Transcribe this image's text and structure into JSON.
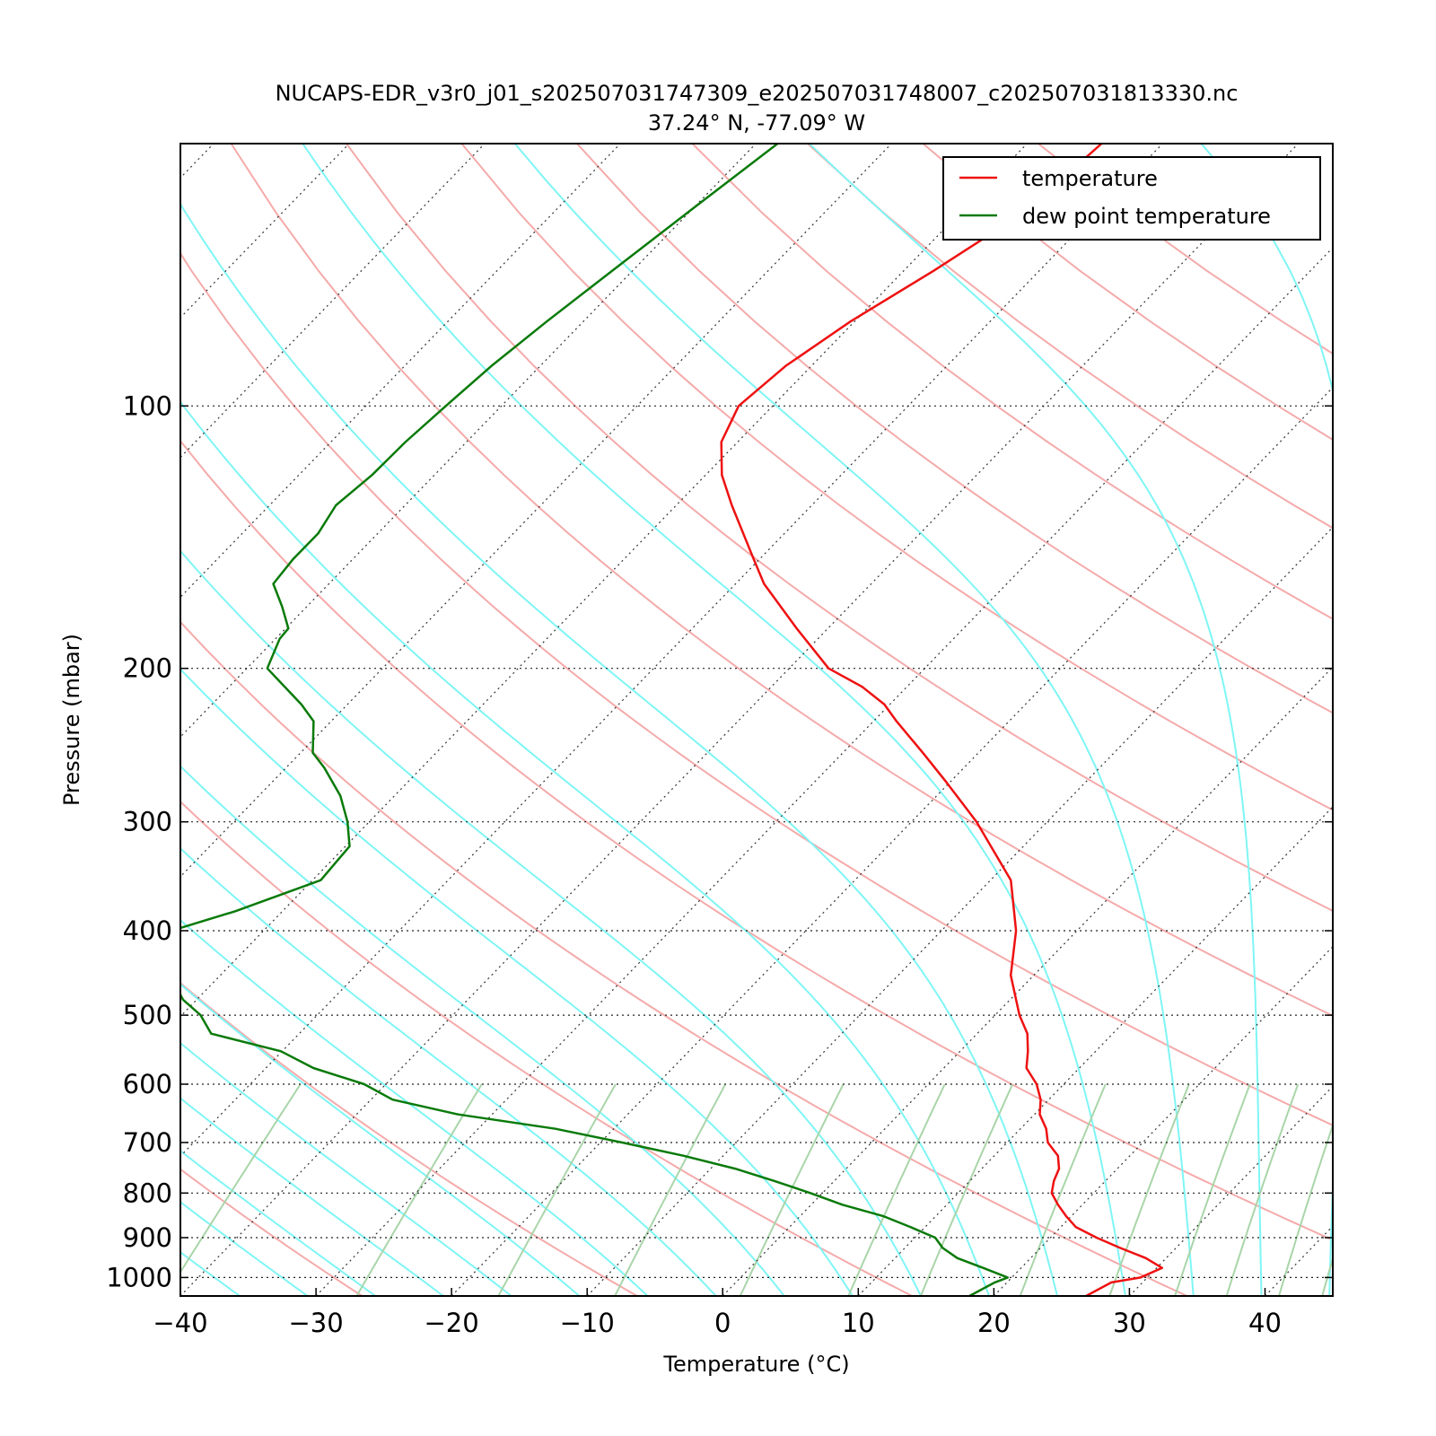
{
  "chart_data": {
    "type": "line",
    "subtype": "skew-t log-p diagram",
    "title": "NUCAPS-EDR_v3r0_j01_s202507031747309_e202507031748007_c202507031813330.nc",
    "subtitle": "37.24° N, -77.09° W",
    "xlabel": "Temperature (°C)",
    "ylabel": "Pressure (mbar)",
    "xlim": [
      -40,
      45
    ],
    "ylim": [
      1050,
      50
    ],
    "yscale": "log",
    "x_ticks": [
      "−40",
      "−30",
      "−20",
      "−10",
      "0",
      "10",
      "20",
      "30",
      "40"
    ],
    "x_tick_values": [
      -40,
      -30,
      -20,
      -10,
      0,
      10,
      20,
      30,
      40
    ],
    "y_ticks": [
      "100",
      "200",
      "300",
      "400",
      "500",
      "600",
      "700",
      "800",
      "900",
      "1000"
    ],
    "y_tick_values": [
      100,
      200,
      300,
      400,
      500,
      600,
      700,
      800,
      900,
      1000
    ],
    "grid": true,
    "legend": "top-right",
    "background_lines": [
      "dry adiabats",
      "moist adiabats",
      "mixing ratio lines",
      "isotherms"
    ],
    "colors": {
      "temperature": "#ee1111",
      "dewpoint": "#0a7a0a",
      "dry_adiabat": "#f5aaaa",
      "moist_adiabat": "#7ff5f5",
      "mixing_ratio": "#a9d5a9",
      "isotherm": "#333333"
    },
    "series": [
      {
        "name": "temperature",
        "pressure": [
          1050,
          1013,
          1000,
          975,
          950,
          925,
          900,
          875,
          850,
          825,
          800,
          775,
          750,
          725,
          700,
          675,
          650,
          625,
          600,
          575,
          550,
          525,
          500,
          450,
          400,
          350,
          300,
          270,
          250,
          230,
          220,
          210,
          200,
          180,
          160,
          150,
          130,
          120,
          110,
          100,
          90,
          80,
          70,
          60,
          50
        ],
        "values": [
          26.8,
          27.7,
          29.5,
          30.4,
          28.5,
          25.9,
          23.4,
          21.1,
          19.6,
          18.2,
          16.9,
          16.2,
          15.7,
          14.7,
          13.0,
          11.9,
          10.4,
          9.4,
          8.0,
          6.1,
          5.0,
          3.7,
          1.8,
          -1.7,
          -4.5,
          -8.5,
          -15.2,
          -20.3,
          -24.1,
          -28.3,
          -30.4,
          -33.3,
          -37.1,
          -42.3,
          -47.9,
          -50.4,
          -55.9,
          -58.8,
          -61.2,
          -62.5,
          -61.9,
          -60.3,
          -57.8,
          -55.3,
          -54.5
        ]
      },
      {
        "name": "dew point temperature",
        "pressure": [
          1050,
          1013,
          1000,
          975,
          950,
          925,
          900,
          875,
          850,
          825,
          800,
          775,
          750,
          725,
          700,
          675,
          650,
          625,
          600,
          575,
          550,
          525,
          500,
          480,
          460,
          450,
          430,
          400,
          380,
          350,
          320,
          300,
          280,
          260,
          250,
          230,
          220,
          200,
          185,
          180,
          170,
          160,
          150,
          140,
          130,
          120,
          110,
          100,
          90,
          80,
          70,
          60,
          50
        ],
        "values": [
          18.2,
          19.1,
          19.7,
          17.2,
          14.6,
          12.8,
          11.5,
          8.9,
          6.1,
          2.3,
          -0.9,
          -4.4,
          -8.2,
          -12.9,
          -18.4,
          -24.3,
          -32.5,
          -38.4,
          -41.6,
          -46.5,
          -50.1,
          -56.5,
          -58.6,
          -61.0,
          -62.8,
          -63.9,
          -66.1,
          -66.8,
          -63.5,
          -59.4,
          -59.7,
          -61.6,
          -64.0,
          -67.2,
          -69.1,
          -71.3,
          -73.4,
          -78.5,
          -79.7,
          -79.8,
          -81.8,
          -84.1,
          -84.4,
          -84.4,
          -85.1,
          -84.6,
          -84.5,
          -84.1,
          -83.6,
          -82.7,
          -81.5,
          -80.1,
          -78.4
        ]
      }
    ]
  }
}
